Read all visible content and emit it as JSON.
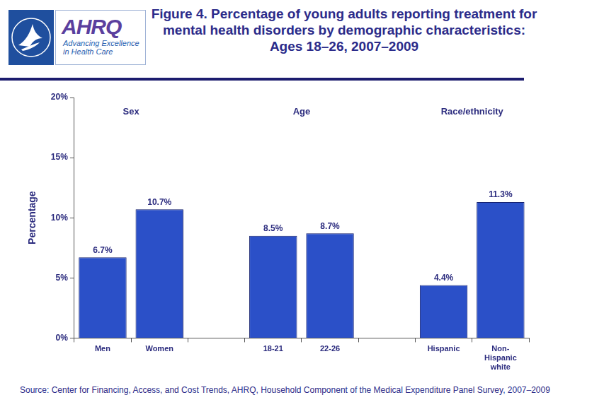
{
  "chart_data": {
    "type": "bar",
    "title": "Figure 4. Percentage of young adults reporting treatment for mental health disorders by demographic characteristics: Ages 18–26, 2007–2009",
    "logo": {
      "name": "AHRQ",
      "tagline": "Advancing Excellence in Health Care"
    },
    "source": "Source: Center for Financing, Access, and Cost Trends, AHRQ, Household Component of the Medical Expenditure Panel Survey, 2007–2009",
    "y_label": "Percentage",
    "categories": [
      "Men",
      "Women",
      null,
      "18-21",
      "22-26",
      null,
      "Hispanic",
      "Non-Hispanic white"
    ],
    "values": [
      6.7,
      10.7,
      null,
      8.5,
      8.7,
      null,
      4.4,
      11.3
    ],
    "value_labels": [
      "6.7%",
      "10.7%",
      null,
      "8.5%",
      "8.7%",
      null,
      "4.4%",
      "11.3%"
    ],
    "color": "#2b50c8",
    "ylim": [
      0,
      20
    ],
    "yticks": [
      {
        "value": 0,
        "label": "0%"
      },
      {
        "value": 5,
        "label": "5%"
      },
      {
        "value": 10,
        "label": "10%"
      },
      {
        "value": 15,
        "label": "15%"
      },
      {
        "value": 20,
        "label": "20%"
      }
    ],
    "grid": false,
    "data_labels": true,
    "annotations": [
      {
        "text": "Sex",
        "categories": [
          "Men",
          "Women"
        ]
      },
      {
        "text": "Age",
        "categories": [
          "18-21",
          "22-26"
        ]
      },
      {
        "text": "Race/ethnicity",
        "categories": [
          "Hispanic",
          "Non-Hispanic white"
        ]
      }
    ]
  }
}
